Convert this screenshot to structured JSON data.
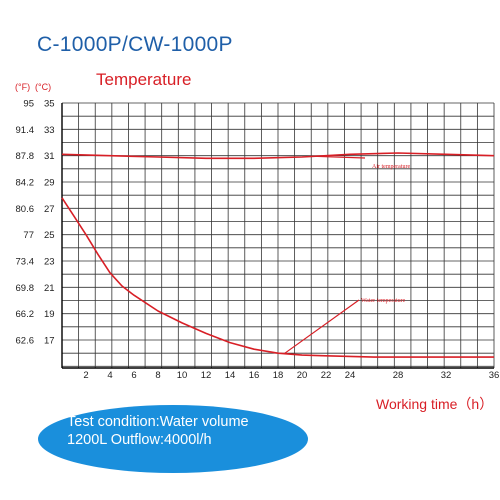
{
  "model": "C-1000P/CW-1000P",
  "units": {
    "fahrenheit": "(°F)",
    "celsius": "(°C)"
  },
  "condition": {
    "line1": "Test condition:Water volume",
    "line2": "1200L Outflow:4000l/h"
  },
  "chart_data": {
    "type": "line",
    "title": "Temperature",
    "xlabel": "Working time（h）",
    "ylabel": "",
    "xlim": [
      0,
      36
    ],
    "ylim": [
      15,
      35
    ],
    "grid": true,
    "x_ticks": [
      2,
      4,
      6,
      8,
      10,
      12,
      14,
      16,
      18,
      20,
      22,
      24,
      28,
      32,
      36
    ],
    "y_ticks_celsius": [
      "35",
      "33",
      "31",
      "29",
      "27",
      "25",
      "23",
      "21",
      "19",
      "17"
    ],
    "y_ticks_fahrenheit": [
      "95",
      "91.4",
      "87.8",
      "84.2",
      "80.6",
      "77",
      "73.4",
      "69.8",
      "66.2",
      "62.6"
    ],
    "series": [
      {
        "name": "Air temperature",
        "color": "#d81f26",
        "x": [
          0,
          4,
          8,
          12,
          16,
          20,
          24,
          28,
          32,
          36
        ],
        "values": [
          31.1,
          31.0,
          30.9,
          30.8,
          30.8,
          30.9,
          31.1,
          31.2,
          31.1,
          31.0
        ]
      },
      {
        "name": "Water temperature",
        "color": "#d81f26",
        "x": [
          0,
          1,
          2,
          3,
          4,
          5,
          6,
          8,
          10,
          12,
          14,
          16,
          18,
          20,
          22,
          26,
          30,
          36
        ],
        "values": [
          27.8,
          26.4,
          25.0,
          23.5,
          22.1,
          21.1,
          20.4,
          19.2,
          18.3,
          17.5,
          16.8,
          16.3,
          16.0,
          15.85,
          15.8,
          15.7,
          15.7,
          15.7
        ]
      }
    ]
  }
}
